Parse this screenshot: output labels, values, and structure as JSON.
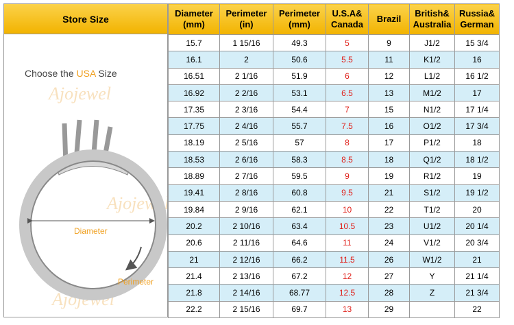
{
  "left_panel": {
    "intro": {
      "before": "Choose the",
      "highlight": "USA",
      "after": "Size"
    },
    "diameter_label": "Diameter",
    "perimeter_label": "Perimeter",
    "watermark": "Ajojewel"
  },
  "table": {
    "store_header": "Store Size",
    "headers": [
      [
        "Diameter",
        "(mm)"
      ],
      [
        "Perimeter",
        "(in)"
      ],
      [
        "Perimeter",
        "(mm)"
      ],
      [
        "U.S.A&",
        "Canada"
      ],
      [
        "Brazil"
      ],
      [
        "British&",
        "Australia"
      ],
      [
        "Russia&",
        "German"
      ]
    ],
    "rows": [
      [
        "15.7",
        "1 15/16",
        "49.3",
        "5",
        "9",
        "J1/2",
        "15 3/4"
      ],
      [
        "16.1",
        "2",
        "50.6",
        "5.5",
        "11",
        "K1/2",
        "16"
      ],
      [
        "16.51",
        "2  1/16",
        "51.9",
        "6",
        "12",
        "L1/2",
        "16 1/2"
      ],
      [
        "16.92",
        "2  2/16",
        "53.1",
        "6.5",
        "13",
        "M1/2",
        "17"
      ],
      [
        "17.35",
        "2  3/16",
        "54.4",
        "7",
        "15",
        "N1/2",
        "17 1/4"
      ],
      [
        "17.75",
        "2  4/16",
        "55.7",
        "7.5",
        "16",
        "O1/2",
        "17 3/4"
      ],
      [
        "18.19",
        "2  5/16",
        "57",
        "8",
        "17",
        "P1/2",
        "18"
      ],
      [
        "18.53",
        "2  6/16",
        "58.3",
        "8.5",
        "18",
        "Q1/2",
        "18 1/2"
      ],
      [
        "18.89",
        "2  7/16",
        "59.5",
        "9",
        "19",
        "R1/2",
        "19"
      ],
      [
        "19.41",
        "2  8/16",
        "60.8",
        "9.5",
        "21",
        "S1/2",
        "19 1/2"
      ],
      [
        "19.84",
        "2  9/16",
        "62.1",
        "10",
        "22",
        "T1/2",
        "20"
      ],
      [
        "20.2",
        "2 10/16",
        "63.4",
        "10.5",
        "23",
        "U1/2",
        "20 1/4"
      ],
      [
        "20.6",
        "2 11/16",
        "64.6",
        "11",
        "24",
        "V1/2",
        "20 3/4"
      ],
      [
        "21",
        "2 12/16",
        "66.2",
        "11.5",
        "26",
        "W1/2",
        "21"
      ],
      [
        "21.4",
        "2 13/16",
        "67.2",
        "12",
        "27",
        "Y",
        "21 1/4"
      ],
      [
        "21.8",
        "2 14/16",
        "68.77",
        "12.5",
        "28",
        "Z",
        "21 3/4"
      ],
      [
        "22.2",
        "2 15/16",
        "69.7",
        "13",
        "29",
        null,
        "22"
      ]
    ]
  }
}
